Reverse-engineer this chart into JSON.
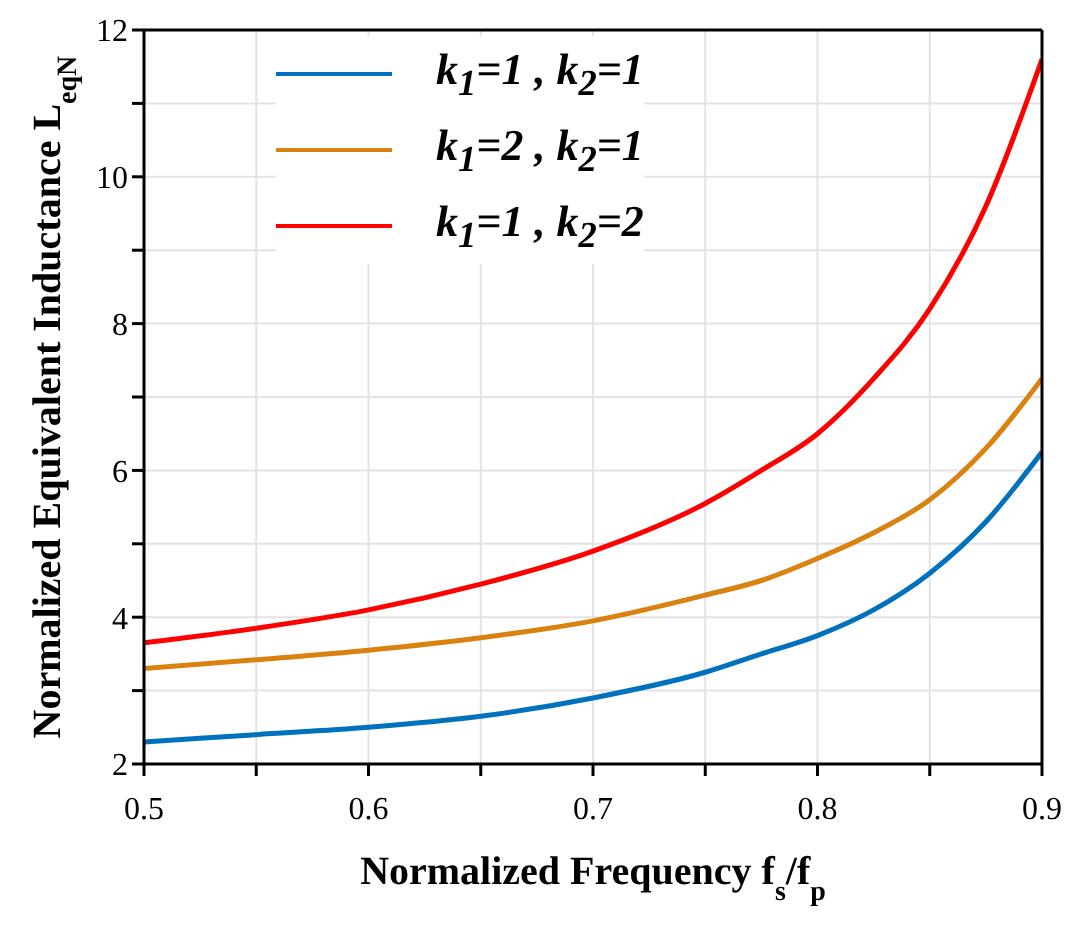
{
  "chart_data": {
    "type": "line",
    "xlabel": "Normalized Frequency f$_{s}$/f$_{p}$",
    "ylabel": "Normalized Equivalent Inductance  L$_{eqN}$",
    "x": [
      0.5,
      0.55,
      0.6,
      0.65,
      0.7,
      0.75,
      0.775,
      0.8,
      0.825,
      0.85,
      0.875,
      0.9
    ],
    "series": [
      {
        "name": "k$_{1}$=1 , k$_{2}$=1",
        "color": "#0072bd",
        "values": [
          2.3,
          2.4,
          2.5,
          2.65,
          2.9,
          3.25,
          3.5,
          3.75,
          4.1,
          4.6,
          5.3,
          6.25
        ]
      },
      {
        "name": "k$_{1}$=2 , k$_{2}$=1",
        "color": "#d9820f",
        "values": [
          3.3,
          3.42,
          3.55,
          3.72,
          3.95,
          4.3,
          4.5,
          4.8,
          5.15,
          5.6,
          6.3,
          7.25
        ]
      },
      {
        "name": "k$_{1}$=1 , k$_{2}$=2",
        "color": "#ff0000",
        "values": [
          3.65,
          3.85,
          4.1,
          4.45,
          4.9,
          5.55,
          6.0,
          6.5,
          7.25,
          8.2,
          9.6,
          11.6
        ]
      }
    ],
    "xlim": [
      0.5,
      0.9
    ],
    "xticks": [
      0.5,
      {
        "value": 0.55,
        "label": null
      },
      0.6,
      {
        "value": 0.65,
        "label": null
      },
      0.7,
      {
        "value": 0.75,
        "label": null
      },
      0.8,
      {
        "value": 0.85,
        "label": null
      },
      0.9
    ],
    "ylim": [
      2,
      12
    ],
    "yticks": [
      2,
      {
        "value": 3,
        "label": null
      },
      4,
      {
        "value": 5,
        "label": null
      },
      6,
      {
        "value": 7,
        "label": null
      },
      8,
      {
        "value": 9,
        "label": null
      },
      10,
      {
        "value": 11,
        "label": null
      },
      12
    ],
    "grid": true,
    "legend": "top left",
    "marker": "none",
    "line_style": "solid"
  }
}
